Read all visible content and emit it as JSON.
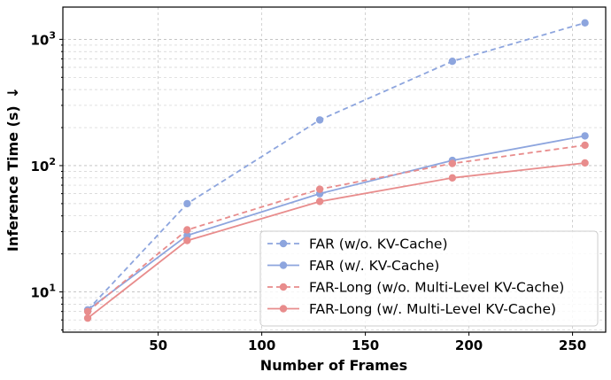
{
  "chart_data": {
    "type": "line",
    "title": "",
    "xlabel": "Number of Frames",
    "ylabel": "Inference Time (s)",
    "ylabel_arrow": "↓",
    "yscale": "log",
    "xlim": [
      4,
      266
    ],
    "ylim": [
      4.8,
      1800
    ],
    "grid": true,
    "legend_position": "lower-right",
    "x_ticks": [
      50,
      100,
      150,
      200,
      250
    ],
    "x_tick_labels": [
      "50",
      "100",
      "150",
      "200",
      "250"
    ],
    "y_major_ticks": [
      10,
      100,
      1000
    ],
    "y_tick_base": "10",
    "y_tick_exponents": [
      "1",
      "2",
      "3"
    ],
    "x": [
      16,
      64,
      128,
      192,
      256
    ],
    "series": [
      {
        "name": "FAR (w/o. KV-Cache)",
        "color": "#8da5de",
        "dashed": true,
        "values": [
          7.2,
          50,
          230,
          670,
          1350
        ]
      },
      {
        "name": "FAR (w/. KV-Cache)",
        "color": "#8da5de",
        "dashed": false,
        "values": [
          7.2,
          28,
          60,
          110,
          172
        ]
      },
      {
        "name": "FAR-Long (w/o. Multi-Level KV-Cache)",
        "color": "#e88c8c",
        "dashed": true,
        "values": [
          7.0,
          31,
          65,
          104,
          145
        ]
      },
      {
        "name": "FAR-Long (w/. Multi-Level KV-Cache)",
        "color": "#e88c8c",
        "dashed": false,
        "values": [
          6.2,
          25.5,
          52,
          80,
          105
        ]
      }
    ]
  }
}
